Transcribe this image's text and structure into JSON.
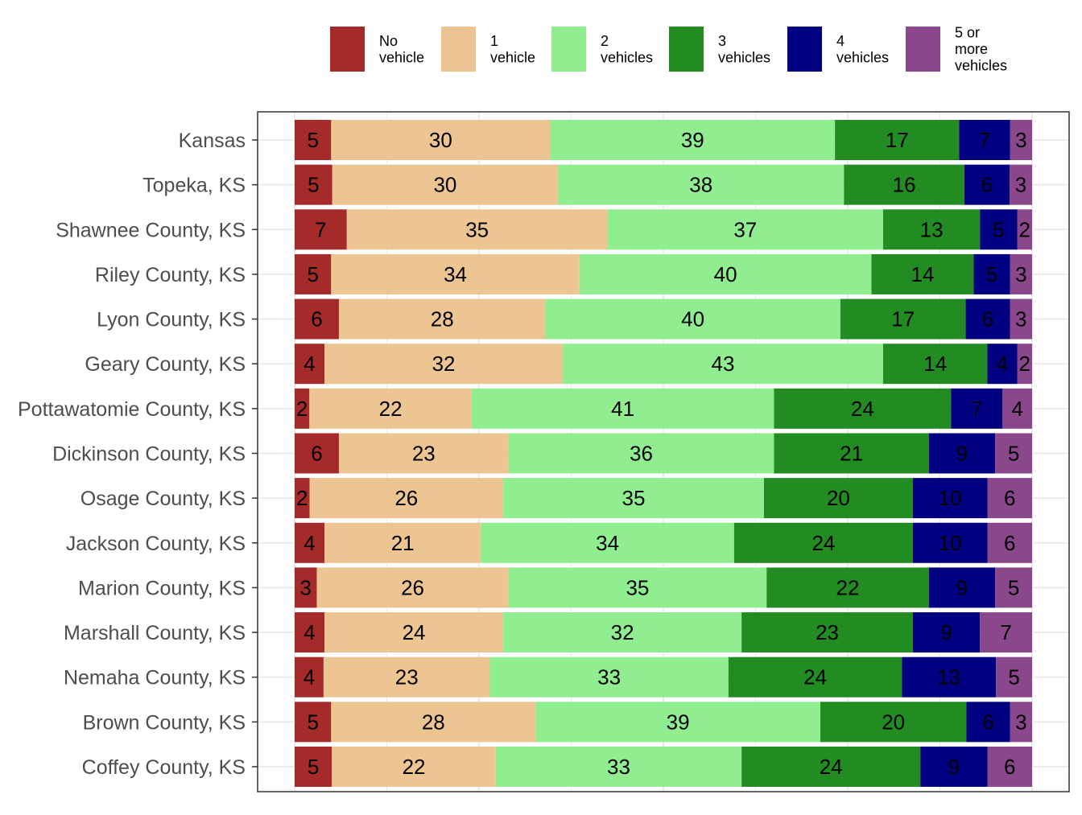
{
  "chart_data": {
    "type": "bar",
    "orientation": "horizontal",
    "stacked": "percent",
    "title": "",
    "xlabel": "",
    "ylabel": "",
    "legend_position": "top",
    "grid": true,
    "categories": [
      "Kansas",
      "Topeka, KS",
      "Shawnee County, KS",
      "Riley County, KS",
      "Lyon County, KS",
      "Geary County, KS",
      "Pottawatomie County, KS",
      "Dickinson County, KS",
      "Osage County, KS",
      "Jackson County, KS",
      "Marion County, KS",
      "Marshall County, KS",
      "Nemaha County, KS",
      "Brown County, KS",
      "Coffey County, KS"
    ],
    "series": [
      {
        "name": "No vehicle",
        "legend_lines": [
          "No",
          "vehicle"
        ],
        "color": "#a52a2a",
        "values": [
          5,
          5,
          7,
          5,
          6,
          4,
          2,
          6,
          2,
          4,
          3,
          4,
          4,
          5,
          5
        ]
      },
      {
        "name": "1 vehicle",
        "legend_lines": [
          "1",
          "vehicle"
        ],
        "color": "#edc592",
        "values": [
          30,
          30,
          35,
          34,
          28,
          32,
          22,
          23,
          26,
          21,
          26,
          24,
          23,
          28,
          22
        ]
      },
      {
        "name": "2 vehicles",
        "legend_lines": [
          "2",
          "vehicles"
        ],
        "color": "#90ee90",
        "values": [
          39,
          38,
          37,
          40,
          40,
          43,
          41,
          36,
          35,
          34,
          35,
          32,
          33,
          39,
          33
        ]
      },
      {
        "name": "3 vehicles",
        "legend_lines": [
          "3",
          "vehicles"
        ],
        "color": "#228b22",
        "values": [
          17,
          16,
          13,
          14,
          17,
          14,
          24,
          21,
          20,
          24,
          22,
          23,
          24,
          20,
          24
        ]
      },
      {
        "name": "4 vehicles",
        "legend_lines": [
          "4",
          "vehicles"
        ],
        "color": "#000080",
        "values": [
          7,
          6,
          5,
          5,
          6,
          4,
          7,
          9,
          10,
          10,
          9,
          9,
          13,
          6,
          9
        ]
      },
      {
        "name": "5 or more vehicles",
        "legend_lines": [
          "5 or",
          "more",
          "vehicles"
        ],
        "color": "#8b478b",
        "values": [
          3,
          3,
          2,
          3,
          3,
          2,
          4,
          5,
          6,
          6,
          5,
          7,
          5,
          3,
          6
        ]
      }
    ]
  }
}
